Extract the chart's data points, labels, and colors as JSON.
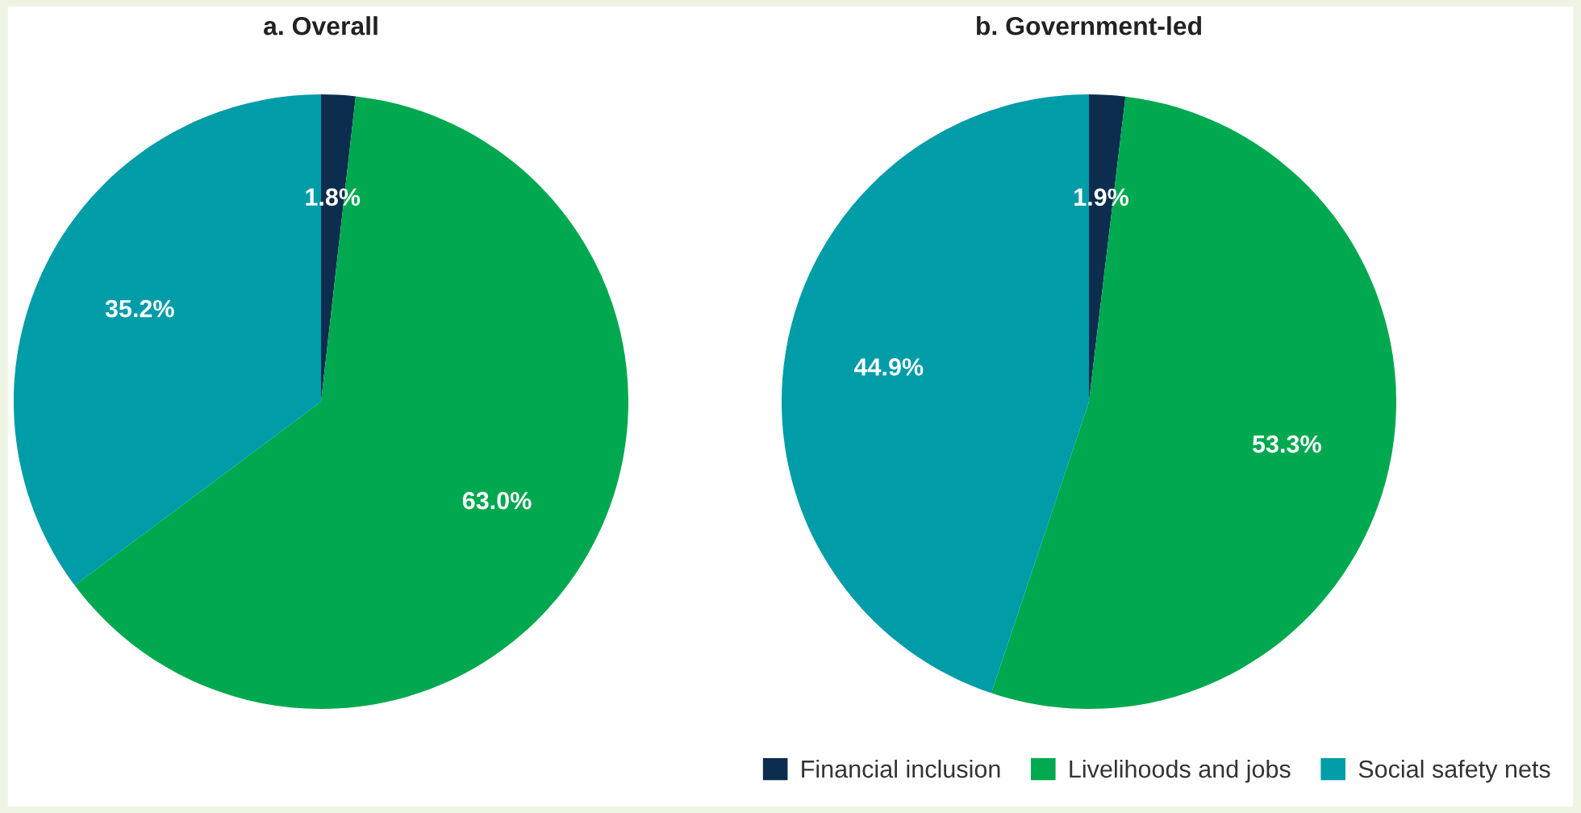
{
  "chart_data": [
    {
      "type": "pie",
      "title": "a. Overall",
      "categories": [
        "Financial inclusion",
        "Livelihoods and jobs",
        "Social safety nets"
      ],
      "values": [
        1.8,
        63.0,
        35.2
      ],
      "colors": [
        "#0d2d4f",
        "#00a84f",
        "#009ca8"
      ],
      "value_labels": [
        "1.8%",
        "63.0%",
        "35.2%"
      ],
      "legend": "bottom"
    },
    {
      "type": "pie",
      "title": "b. Government-led",
      "categories": [
        null,
        null,
        null
      ],
      "values": [
        1.9,
        53.3,
        44.9
      ],
      "colors": [
        "#0d2d4f",
        "#00a84f",
        "#009ca8"
      ],
      "value_labels": [
        "1.9%",
        "53.3%",
        "44.9%"
      ]
    }
  ]
}
